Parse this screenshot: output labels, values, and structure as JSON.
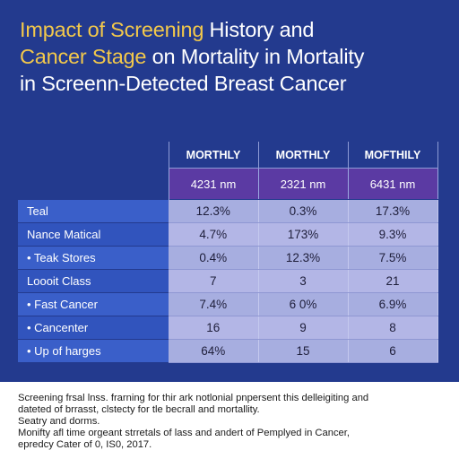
{
  "title": {
    "line1_highlight": "Impact of Screening",
    "line1_rest": " History and",
    "line2_highlight": "Cancer Stage",
    "line2_rest": " on Mortality in Mortality",
    "line3": "in Screenn-Detected Breast Cancer"
  },
  "chart_data": {
    "type": "table",
    "columns": [
      "MORTHLY",
      "MORTHLY",
      "MOFTHILY"
    ],
    "subheader": [
      "4231 nm",
      "2321 nm",
      "6431 nm"
    ],
    "rows": [
      {
        "label": "Teal",
        "values": [
          "12.3%",
          "0.3%",
          "17.3%"
        ]
      },
      {
        "label": "Nance Matical",
        "values": [
          "4.7%",
          "173%",
          "9.3%"
        ]
      },
      {
        "label": "• Teak Stores",
        "values": [
          "0.4%",
          "12.3%",
          "7.5%"
        ]
      },
      {
        "label": "Loooit Class",
        "values": [
          "7",
          "3",
          "21"
        ]
      },
      {
        "label": "• Fast Cancer",
        "values": [
          "7.4%",
          "6 0%",
          "6.9%"
        ]
      },
      {
        "label": "• Cancenter",
        "values": [
          "16",
          "9",
          "8"
        ]
      },
      {
        "label": "• Up of harges",
        "values": [
          "64%",
          "15",
          "6"
        ]
      }
    ]
  },
  "footer": {
    "line1": "Screening frsal lnss. frarning for thir ark notlonial pnpersent this delleigiting and",
    "line2": "dateted of brrasst, clstecty for tle becrall and mortallity.",
    "line3": "Seatry and dorms.",
    "line4": "Monifty afl time orgeant strretals of lass and andert of Pemplyed in Cancer,",
    "line5": "epredcy Cater of 0, IS0, 2017."
  },
  "colors": {
    "background": "#233a8e",
    "title_highlight": "#f2c84b",
    "subheader_purple": "#5b3aa3",
    "label_blue": "#3a5fc9",
    "cell_lavender": "#a7aee0"
  }
}
